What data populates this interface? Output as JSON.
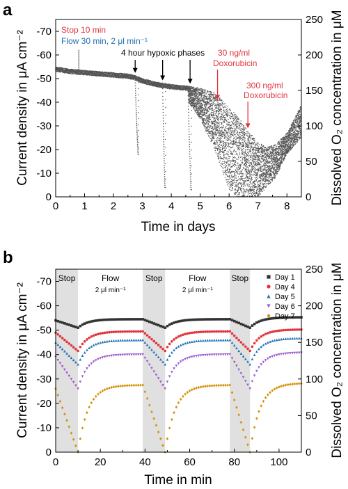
{
  "colors": {
    "day1": "#333333",
    "day4": "#e2343b",
    "day5": "#1f6fb4",
    "day6": "#9b59d0",
    "day7": "#d4920a",
    "trace_a": "#555555",
    "shade": "#e0e0e0",
    "ann_red": "#e2343b",
    "ann_blue": "#1f6fb4"
  },
  "chart_data": [
    {
      "panel": "a",
      "type": "scatter",
      "xlabel": "Time in days",
      "ylabel": "Current density in μA cm⁻²",
      "ylabel2": "Dissolved O₂ concentration in μM",
      "xlim": [
        0,
        8.5
      ],
      "ylim": [
        0,
        -75
      ],
      "ylim2": [
        0,
        250
      ],
      "xticks": [
        "0",
        "1",
        "2",
        "3",
        "4",
        "5",
        "6",
        "7",
        "8"
      ],
      "yticks": [
        "0",
        "-10",
        "-20",
        "-30",
        "-40",
        "-50",
        "-60",
        "-70"
      ],
      "y2ticks": [
        "0",
        "50",
        "100",
        "150",
        "200",
        "250"
      ],
      "grid": false,
      "baseline": [
        [
          0,
          -55
        ],
        [
          0.5,
          -54
        ],
        [
          1,
          -53.5
        ],
        [
          1.5,
          -53
        ],
        [
          2,
          -52.5
        ],
        [
          2.5,
          -52
        ],
        [
          2.7,
          -51.5
        ],
        [
          3,
          -50
        ],
        [
          3.5,
          -48.5
        ],
        [
          4,
          -47.5
        ],
        [
          4.5,
          -47
        ],
        [
          5,
          -46
        ],
        [
          5.5,
          -44
        ],
        [
          6,
          -38
        ],
        [
          6.5,
          -31
        ],
        [
          6.8,
          -26
        ],
        [
          7,
          -23
        ],
        [
          7.3,
          -21
        ],
        [
          7.6,
          -22
        ],
        [
          8,
          -27
        ],
        [
          8.3,
          -34
        ],
        [
          8.5,
          -39
        ]
      ],
      "lower_envelope": [
        [
          4.6,
          -40
        ],
        [
          5,
          -33
        ],
        [
          5.5,
          -20
        ],
        [
          6,
          -3
        ],
        [
          6.3,
          0
        ],
        [
          7,
          0
        ],
        [
          7.6,
          -8
        ],
        [
          8,
          -18
        ],
        [
          8.5,
          -25
        ]
      ],
      "dips": [
        {
          "start": 2.75,
          "end": 2.85,
          "min": -18
        },
        {
          "start": 3.7,
          "end": 3.78,
          "min": -4
        },
        {
          "start": 4.58,
          "end": 4.68,
          "min": -3
        }
      ],
      "spike": {
        "x": 0.8,
        "y": -62
      },
      "annotations": {
        "stop": "Stop 10 min",
        "flow": "Flow 30 min, 2 μl min⁻¹",
        "hypoxic": "4 hour hypoxic phases",
        "dox30_line1": "30 ng/ml",
        "dox30_line2": "Doxorubicin",
        "dox300_line1": "300 ng/ml",
        "dox300_line2": "Doxorubicin"
      },
      "arrows_black_x": [
        2.75,
        3.7,
        4.65
      ],
      "arrows_red_x": [
        5.6,
        6.65
      ]
    },
    {
      "panel": "b",
      "type": "scatter",
      "xlabel": "Time in min",
      "ylabel": "Current density in μA cm⁻²",
      "ylabel2": "Dissolved O₂ concentration in μM",
      "xlim": [
        0,
        110
      ],
      "ylim": [
        0,
        -75
      ],
      "ylim2": [
        0,
        250
      ],
      "xticks": [
        "0",
        "20",
        "40",
        "60",
        "80",
        "100"
      ],
      "yticks": [
        "0",
        "-10",
        "-20",
        "-30",
        "-40",
        "-50",
        "-60",
        "-70"
      ],
      "y2ticks": [
        "0",
        "50",
        "100",
        "150",
        "200",
        "250"
      ],
      "grid": false,
      "phases": [
        {
          "label": "Stop",
          "start": 0,
          "end": 10,
          "shaded": true
        },
        {
          "label": "Flow",
          "sublabel": "2 μl min⁻¹",
          "start": 10,
          "end": 39,
          "shaded": false
        },
        {
          "label": "Stop",
          "start": 39,
          "end": 49,
          "shaded": true
        },
        {
          "label": "Flow",
          "sublabel": "2 μl min⁻¹",
          "start": 49,
          "end": 78,
          "shaded": false
        },
        {
          "label": "Stop",
          "start": 78,
          "end": 87,
          "shaded": true
        }
      ],
      "legend": [
        "Day 1",
        "Day 4",
        "Day 5",
        "Day 6",
        "Day 7"
      ],
      "series": [
        {
          "name": "Day 1",
          "marker": "square",
          "plateau": -54.5,
          "dip": -51,
          "start": -54
        },
        {
          "name": "Day 4",
          "marker": "circle",
          "plateau": -49.5,
          "dip": -41.5,
          "start": -49
        },
        {
          "name": "Day 5",
          "marker": "triangle-up",
          "plateau": -46,
          "dip": -36,
          "start": -45
        },
        {
          "name": "Day 6",
          "marker": "triangle-down",
          "plateau": -40,
          "dip": -26,
          "start": -39
        },
        {
          "name": "Day 7",
          "marker": "diamond",
          "plateau": -27.5,
          "dip": 0,
          "start": -26
        }
      ]
    }
  ],
  "panels": {
    "a": {
      "letter": "a"
    },
    "b": {
      "letter": "b"
    }
  }
}
